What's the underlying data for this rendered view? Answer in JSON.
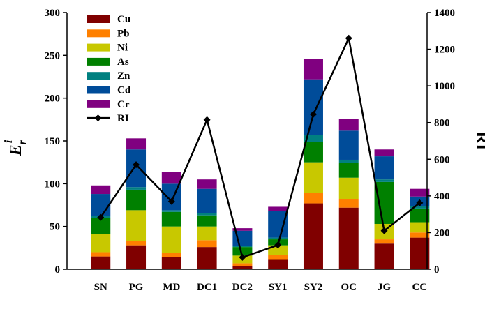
{
  "chart_data": {
    "type": "bar",
    "stacked": true,
    "categories": [
      "SN",
      "PG",
      "MD",
      "DC1",
      "DC2",
      "SY1",
      "SY2",
      "OC",
      "JG",
      "CC"
    ],
    "series": [
      {
        "name": "Cu",
        "color": "#800000",
        "values": [
          15,
          28,
          14,
          26,
          4,
          11,
          77,
          72,
          30,
          37
        ]
      },
      {
        "name": "Pb",
        "color": "#FF8000",
        "values": [
          5,
          5,
          5,
          8,
          3,
          6,
          12,
          10,
          5,
          6
        ]
      },
      {
        "name": "Ni",
        "color": "#C8C800",
        "values": [
          21,
          36,
          31,
          16,
          9,
          11,
          36,
          25,
          18,
          12
        ]
      },
      {
        "name": "As",
        "color": "#008000",
        "values": [
          19,
          24,
          17,
          13,
          10,
          7,
          24,
          17,
          49,
          16
        ]
      },
      {
        "name": "Zn",
        "color": "#008080",
        "values": [
          2,
          3,
          2,
          3,
          1,
          2,
          8,
          4,
          3,
          3
        ]
      },
      {
        "name": "Cd",
        "color": "#004C99",
        "values": [
          26,
          44,
          31,
          28,
          18,
          31,
          65,
          34,
          27,
          11
        ]
      },
      {
        "name": "Cr",
        "color": "#800080",
        "values": [
          10,
          13,
          14,
          11,
          3,
          5,
          24,
          14,
          8,
          9
        ]
      }
    ],
    "line": {
      "name": "RI",
      "axis": "right",
      "color": "#000000",
      "marker": "diamond",
      "values": [
        283,
        570,
        370,
        815,
        65,
        132,
        845,
        1260,
        210,
        362
      ]
    },
    "ylim": [
      0,
      300
    ],
    "yticks": [
      "0",
      "50",
      "100",
      "150",
      "200",
      "250",
      "300"
    ],
    "y2lim": [
      0,
      1400
    ],
    "y2ticks": [
      "0",
      "200",
      "400",
      "600",
      "800",
      "1000",
      "1200",
      "1400"
    ],
    "ylabel": {
      "main": "E",
      "sub": "r",
      "sup": "i"
    },
    "y2label": "RI",
    "legend_position": "top-left"
  }
}
